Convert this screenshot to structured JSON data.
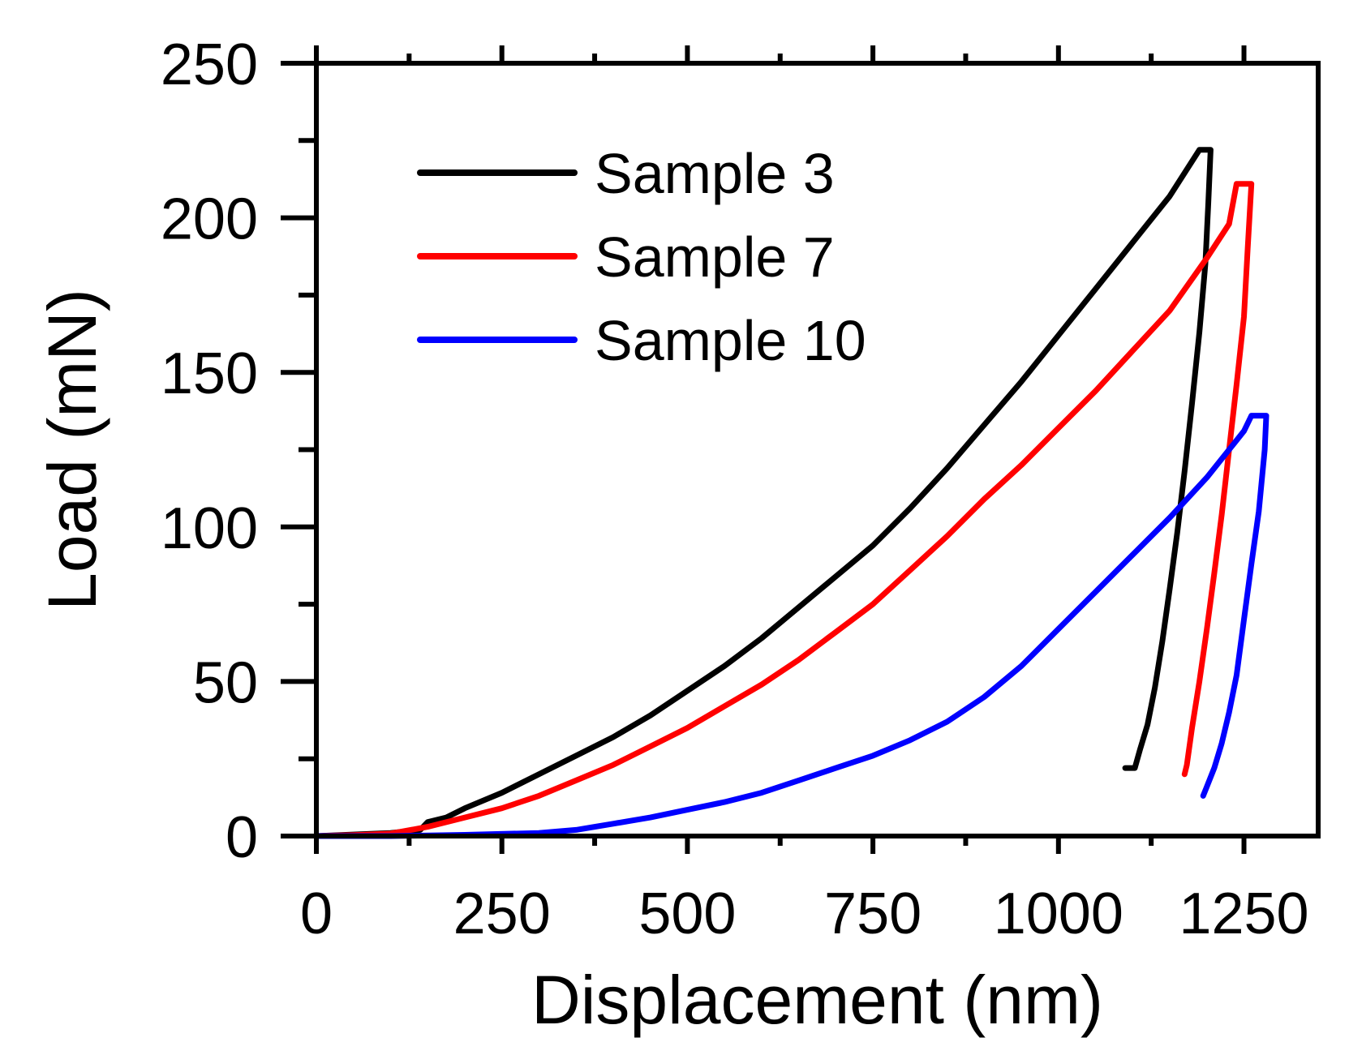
{
  "chart_data": {
    "type": "line",
    "title": "",
    "xlabel": "Displacement (nm)",
    "ylabel": "Load (mN)",
    "xlim": [
      0,
      1350
    ],
    "ylim": [
      0,
      250
    ],
    "xticks": [
      0,
      250,
      500,
      750,
      1000,
      1250
    ],
    "xtick_labels": [
      "0",
      "250",
      "500",
      "750",
      "1000",
      "1250"
    ],
    "yticks": [
      0,
      50,
      100,
      150,
      200,
      250
    ],
    "ytick_labels": [
      "0",
      "50",
      "100",
      "150",
      "200",
      "250"
    ],
    "x_minor_step": 125,
    "y_minor_step": 25,
    "legend_position": "top-left",
    "grid": false,
    "series": [
      {
        "name": "Sample 3",
        "color": "#000000",
        "x": [
          0,
          50,
          100,
          140,
          150,
          175,
          200,
          250,
          300,
          350,
          400,
          450,
          500,
          550,
          600,
          650,
          700,
          750,
          800,
          850,
          900,
          950,
          1000,
          1050,
          1100,
          1150,
          1190,
          1200,
          1205,
          1202,
          1198,
          1190,
          1180,
          1170,
          1160,
          1150,
          1140,
          1130,
          1120,
          1110,
          1103,
          1098,
          1090
        ],
        "y": [
          0,
          0.5,
          1,
          2,
          4.5,
          6,
          9,
          14,
          20,
          26,
          32,
          39,
          47,
          55,
          64,
          74,
          84,
          94,
          106,
          119,
          133,
          147,
          162,
          177,
          192,
          207,
          222,
          222,
          222,
          205,
          185,
          163,
          140,
          118,
          98,
          80,
          63,
          48,
          36,
          28,
          22,
          22,
          22
        ]
      },
      {
        "name": "Sample 7",
        "color": "#ff0000",
        "x": [
          0,
          50,
          100,
          150,
          200,
          250,
          300,
          350,
          400,
          450,
          500,
          550,
          600,
          650,
          700,
          750,
          800,
          850,
          900,
          950,
          1000,
          1050,
          1100,
          1150,
          1200,
          1230,
          1240,
          1250,
          1260,
          1255,
          1250,
          1240,
          1230,
          1220,
          1210,
          1200,
          1190,
          1180,
          1173,
          1170
        ],
        "y": [
          0,
          0.3,
          0.8,
          3,
          6,
          9,
          13,
          18,
          23,
          29,
          35,
          42,
          49,
          57,
          66,
          75,
          86,
          97,
          109,
          120,
          132,
          144,
          157,
          170,
          187,
          198,
          211,
          211,
          211,
          190,
          168,
          146,
          125,
          104,
          85,
          67,
          50,
          35,
          23,
          20
        ]
      },
      {
        "name": "Sample 10",
        "color": "#0000ff",
        "x": [
          0,
          100,
          200,
          300,
          350,
          400,
          450,
          500,
          550,
          600,
          650,
          700,
          750,
          800,
          850,
          900,
          950,
          1000,
          1050,
          1100,
          1150,
          1200,
          1230,
          1250,
          1260,
          1270,
          1280,
          1278,
          1270,
          1260,
          1250,
          1240,
          1230,
          1220,
          1210,
          1200,
          1195
        ],
        "y": [
          0,
          0,
          0.4,
          1,
          2,
          4,
          6,
          8.5,
          11,
          14,
          18,
          22,
          26,
          31,
          37,
          45,
          55,
          67,
          79,
          91,
          103,
          116,
          125,
          131,
          136,
          136,
          136,
          125,
          105,
          88,
          70,
          52,
          40,
          30,
          22,
          16,
          13
        ]
      }
    ]
  }
}
